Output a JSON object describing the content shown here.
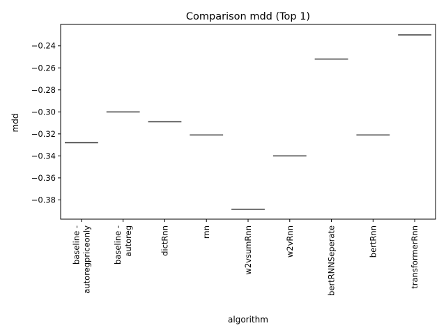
{
  "chart_data": {
    "type": "box",
    "title": "Comparison mdd (Top 1)",
    "xlabel": "algorithm",
    "ylabel": "mdd",
    "categories": [
      [
        "baseline -",
        "autoregpriceonly"
      ],
      [
        "baseline -",
        "autoreg"
      ],
      [
        "dictRnn"
      ],
      [
        "rnn"
      ],
      [
        "w2vsumRnn"
      ],
      [
        "w2vRnn"
      ],
      [
        "bertRNNSeperate"
      ],
      [
        "bertRnn"
      ],
      [
        "transformerRnn"
      ]
    ],
    "values": [
      -0.328,
      -0.3,
      -0.309,
      -0.321,
      -0.3885,
      -0.34,
      -0.252,
      -0.321,
      -0.23
    ],
    "ylim": [
      -0.3975,
      -0.2205
    ],
    "yticks": [
      -0.38,
      -0.36,
      -0.34,
      -0.32,
      -0.3,
      -0.28,
      -0.26,
      -0.24
    ],
    "ytick_labels": [
      "−0.38",
      "−0.36",
      "−0.34",
      "−0.32",
      "−0.30",
      "−0.28",
      "−0.26",
      "−0.24"
    ],
    "grid": false,
    "colors": {
      "median": "#3a3a3a",
      "axis": "#000000"
    }
  }
}
